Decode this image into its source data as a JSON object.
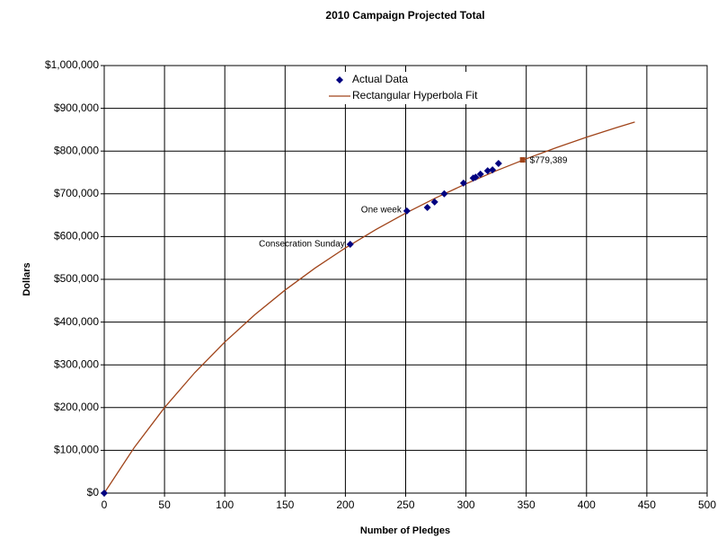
{
  "chart_data": {
    "type": "scatter",
    "title": "2010 Campaign Projected Total",
    "x_label": "Number of Pledges",
    "y_label": "Dollars",
    "xlim": [
      0,
      500
    ],
    "xticks": [
      0,
      50,
      100,
      150,
      200,
      250,
      300,
      350,
      400,
      450,
      500
    ],
    "ylim": [
      0,
      1000000
    ],
    "yticks": [
      {
        "value": 0,
        "label": "$0"
      },
      {
        "value": 100000,
        "label": "$100,000"
      },
      {
        "value": 200000,
        "label": "$200,000"
      },
      {
        "value": 300000,
        "label": "$300,000"
      },
      {
        "value": 400000,
        "label": "$400,000"
      },
      {
        "value": 500000,
        "label": "$500,000"
      },
      {
        "value": 600000,
        "label": "$600,000"
      },
      {
        "value": 700000,
        "label": "$700,000"
      },
      {
        "value": 800000,
        "label": "$800,000"
      },
      {
        "value": 900000,
        "label": "$900,000"
      },
      {
        "value": 1000000,
        "label": "$1,000,000"
      }
    ],
    "grid": true,
    "legend": "top",
    "series": [
      {
        "name": "Actual Data",
        "color": "#000080",
        "kind": "scatter",
        "x": [
          0,
          204,
          251,
          268,
          274,
          282,
          298,
          306,
          308,
          312,
          318,
          322,
          327
        ],
        "values": [
          0,
          582000,
          660000,
          668000,
          681000,
          700000,
          725000,
          737000,
          739000,
          746000,
          754000,
          756000,
          771000
        ]
      },
      {
        "name": "Rectangular Hyperbola Fit",
        "color": "#a0441a",
        "kind": "line",
        "x": [
          0,
          25,
          50,
          75,
          100,
          125,
          150,
          175,
          200,
          225,
          250,
          275,
          300,
          325,
          350,
          375,
          400,
          425,
          440
        ],
        "values": [
          0,
          107000,
          200000,
          281500,
          353400,
          417500,
          474900,
          526600,
          573400,
          616000,
          654900,
          690600,
          723400,
          753800,
          781900,
          808000,
          832400,
          855100,
          868000
        ]
      }
    ],
    "annotations": [
      {
        "text": "Consecration Sunday",
        "x": 204,
        "y": 582000
      },
      {
        "text": "One week",
        "x": 251,
        "y": 660000
      }
    ],
    "projection": {
      "x": 347,
      "value": 779389,
      "value_label": "$779,389",
      "color": "#a0441a"
    }
  }
}
